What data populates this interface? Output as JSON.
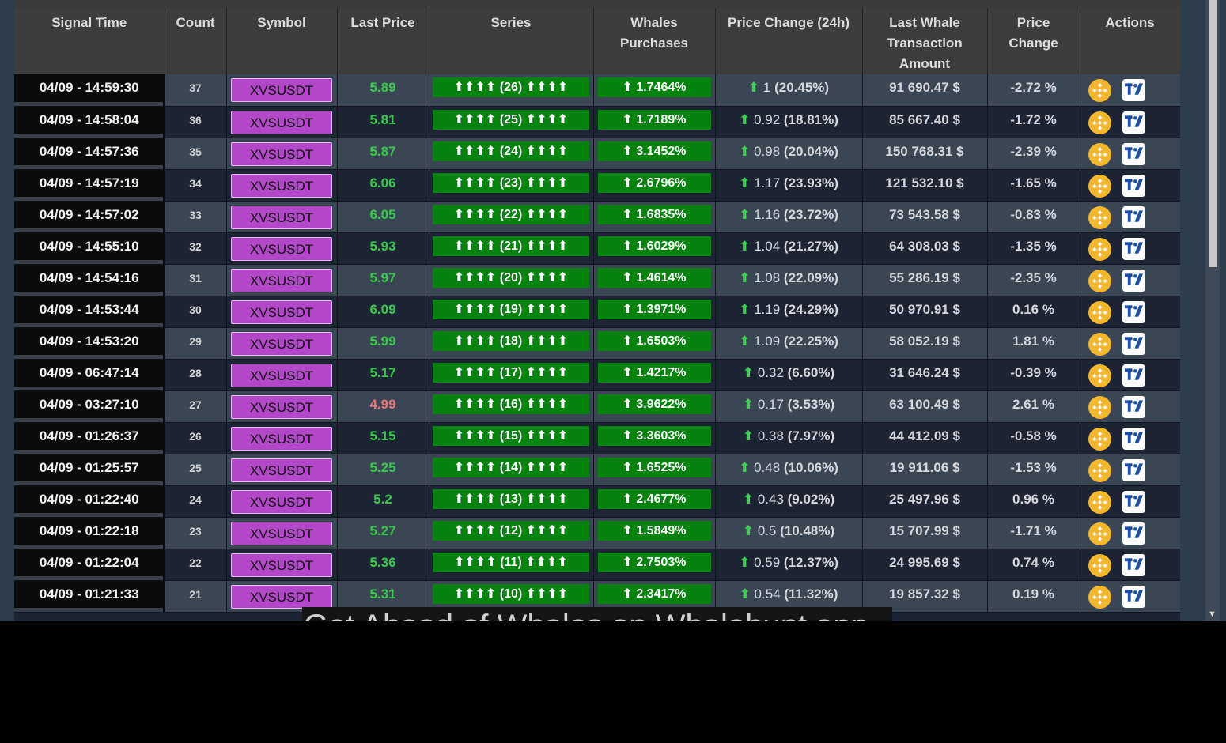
{
  "headers": {
    "signal_time": "Signal Time",
    "count": "Count",
    "symbol": "Symbol",
    "last_price": "Last Price",
    "series": "Series",
    "whales_1": "Whales",
    "whales_2": "Purchases",
    "pc24": "Price Change (24h)",
    "lwta_1": "Last Whale",
    "lwta_2": "Transaction",
    "lwta_3": "Amount",
    "pchg_1": "Price",
    "pchg_2": "Change",
    "actions": "Actions"
  },
  "rows": [
    {
      "time": "04/09 - 14:59:30",
      "count": "37",
      "symbol": "XVSUSDT",
      "price": "5.89",
      "price_dir": "up",
      "series": "⬆⬆⬆⬆ (26) ⬆⬆⬆⬆",
      "whale": "⬆ 1.7464%",
      "chg_arrow": "⬆",
      "chg_val": "1",
      "chg_pct": "(20.45%)",
      "amount": "91 690.47 $",
      "pchange": "-2.72 %"
    },
    {
      "time": "04/09 - 14:58:04",
      "count": "36",
      "symbol": "XVSUSDT",
      "price": "5.81",
      "price_dir": "up",
      "series": "⬆⬆⬆⬆ (25) ⬆⬆⬆⬆",
      "whale": "⬆ 1.7189%",
      "chg_arrow": "⬆",
      "chg_val": "0.92",
      "chg_pct": "(18.81%)",
      "amount": "85 667.40 $",
      "pchange": "-1.72 %"
    },
    {
      "time": "04/09 - 14:57:36",
      "count": "35",
      "symbol": "XVSUSDT",
      "price": "5.87",
      "price_dir": "up",
      "series": "⬆⬆⬆⬆ (24) ⬆⬆⬆⬆",
      "whale": "⬆ 3.1452%",
      "chg_arrow": "⬆",
      "chg_val": "0.98",
      "chg_pct": "(20.04%)",
      "amount": "150 768.31 $",
      "pchange": "-2.39 %"
    },
    {
      "time": "04/09 - 14:57:19",
      "count": "34",
      "symbol": "XVSUSDT",
      "price": "6.06",
      "price_dir": "up",
      "series": "⬆⬆⬆⬆ (23) ⬆⬆⬆⬆",
      "whale": "⬆ 2.6796%",
      "chg_arrow": "⬆",
      "chg_val": "1.17",
      "chg_pct": "(23.93%)",
      "amount": "121 532.10 $",
      "pchange": "-1.65 %"
    },
    {
      "time": "04/09 - 14:57:02",
      "count": "33",
      "symbol": "XVSUSDT",
      "price": "6.05",
      "price_dir": "up",
      "series": "⬆⬆⬆⬆ (22) ⬆⬆⬆⬆",
      "whale": "⬆ 1.6835%",
      "chg_arrow": "⬆",
      "chg_val": "1.16",
      "chg_pct": "(23.72%)",
      "amount": "73 543.58 $",
      "pchange": "-0.83 %"
    },
    {
      "time": "04/09 - 14:55:10",
      "count": "32",
      "symbol": "XVSUSDT",
      "price": "5.93",
      "price_dir": "up",
      "series": "⬆⬆⬆⬆ (21) ⬆⬆⬆⬆",
      "whale": "⬆ 1.6029%",
      "chg_arrow": "⬆",
      "chg_val": "1.04",
      "chg_pct": "(21.27%)",
      "amount": "64 308.03 $",
      "pchange": "-1.35 %"
    },
    {
      "time": "04/09 - 14:54:16",
      "count": "31",
      "symbol": "XVSUSDT",
      "price": "5.97",
      "price_dir": "up",
      "series": "⬆⬆⬆⬆ (20) ⬆⬆⬆⬆",
      "whale": "⬆ 1.4614%",
      "chg_arrow": "⬆",
      "chg_val": "1.08",
      "chg_pct": "(22.09%)",
      "amount": "55 286.19 $",
      "pchange": "-2.35 %"
    },
    {
      "time": "04/09 - 14:53:44",
      "count": "30",
      "symbol": "XVSUSDT",
      "price": "6.09",
      "price_dir": "up",
      "series": "⬆⬆⬆⬆ (19) ⬆⬆⬆⬆",
      "whale": "⬆ 1.3971%",
      "chg_arrow": "⬆",
      "chg_val": "1.19",
      "chg_pct": "(24.29%)",
      "amount": "50 970.91 $",
      "pchange": "0.16 %"
    },
    {
      "time": "04/09 - 14:53:20",
      "count": "29",
      "symbol": "XVSUSDT",
      "price": "5.99",
      "price_dir": "up",
      "series": "⬆⬆⬆⬆ (18) ⬆⬆⬆⬆",
      "whale": "⬆ 1.6503%",
      "chg_arrow": "⬆",
      "chg_val": "1.09",
      "chg_pct": "(22.25%)",
      "amount": "58 052.19 $",
      "pchange": "1.81 %"
    },
    {
      "time": "04/09 - 06:47:14",
      "count": "28",
      "symbol": "XVSUSDT",
      "price": "5.17",
      "price_dir": "up",
      "series": "⬆⬆⬆⬆ (17) ⬆⬆⬆⬆",
      "whale": "⬆ 1.4217%",
      "chg_arrow": "⬆",
      "chg_val": "0.32",
      "chg_pct": "(6.60%)",
      "amount": "31 646.24 $",
      "pchange": "-0.39 %"
    },
    {
      "time": "04/09 - 03:27:10",
      "count": "27",
      "symbol": "XVSUSDT",
      "price": "4.99",
      "price_dir": "down",
      "series": "⬆⬆⬆⬆ (16) ⬆⬆⬆⬆",
      "whale": "⬆ 3.9622%",
      "chg_arrow": "⬆",
      "chg_val": "0.17",
      "chg_pct": "(3.53%)",
      "amount": "63 100.49 $",
      "pchange": "2.61 %"
    },
    {
      "time": "04/09 - 01:26:37",
      "count": "26",
      "symbol": "XVSUSDT",
      "price": "5.15",
      "price_dir": "up",
      "series": "⬆⬆⬆⬆ (15) ⬆⬆⬆⬆",
      "whale": "⬆ 3.3603%",
      "chg_arrow": "⬆",
      "chg_val": "0.38",
      "chg_pct": "(7.97%)",
      "amount": "44 412.09 $",
      "pchange": "-0.58 %"
    },
    {
      "time": "04/09 - 01:25:57",
      "count": "25",
      "symbol": "XVSUSDT",
      "price": "5.25",
      "price_dir": "up",
      "series": "⬆⬆⬆⬆ (14) ⬆⬆⬆⬆",
      "whale": "⬆ 1.6525%",
      "chg_arrow": "⬆",
      "chg_val": "0.48",
      "chg_pct": "(10.06%)",
      "amount": "19 911.06 $",
      "pchange": "-1.53 %"
    },
    {
      "time": "04/09 - 01:22:40",
      "count": "24",
      "symbol": "XVSUSDT",
      "price": "5.2",
      "price_dir": "up",
      "series": "⬆⬆⬆⬆ (13) ⬆⬆⬆⬆",
      "whale": "⬆ 2.4677%",
      "chg_arrow": "⬆",
      "chg_val": "0.43",
      "chg_pct": "(9.02%)",
      "amount": "25 497.96 $",
      "pchange": "0.96 %"
    },
    {
      "time": "04/09 - 01:22:18",
      "count": "23",
      "symbol": "XVSUSDT",
      "price": "5.27",
      "price_dir": "up",
      "series": "⬆⬆⬆⬆ (12) ⬆⬆⬆⬆",
      "whale": "⬆ 1.5849%",
      "chg_arrow": "⬆",
      "chg_val": "0.5",
      "chg_pct": "(10.48%)",
      "amount": "15 707.99 $",
      "pchange": "-1.71 %"
    },
    {
      "time": "04/09 - 01:22:04",
      "count": "22",
      "symbol": "XVSUSDT",
      "price": "5.36",
      "price_dir": "up",
      "series": "⬆⬆⬆⬆ (11) ⬆⬆⬆⬆",
      "whale": "⬆ 2.7503%",
      "chg_arrow": "⬆",
      "chg_val": "0.59",
      "chg_pct": "(12.37%)",
      "amount": "24 995.69 $",
      "pchange": "0.74 %"
    },
    {
      "time": "04/09 - 01:21:33",
      "count": "21",
      "symbol": "XVSUSDT",
      "price": "5.31",
      "price_dir": "up",
      "series": "⬆⬆⬆⬆ (10) ⬆⬆⬆⬆",
      "whale": "⬆ 2.3417%",
      "chg_arrow": "⬆",
      "chg_val": "0.54",
      "chg_pct": "(11.32%)",
      "amount": "19 857.32 $",
      "pchange": "0.19 %"
    }
  ],
  "banner": "Get Ahead of Whales on Whalehunt app",
  "icons": {
    "exchange": "binance-icon",
    "chart": "tradingview-icon"
  },
  "colors": {
    "symbol_bg": "#b247c8",
    "series_bg": "#06820e",
    "price_up": "#37c94b",
    "price_down": "#e8747a"
  }
}
